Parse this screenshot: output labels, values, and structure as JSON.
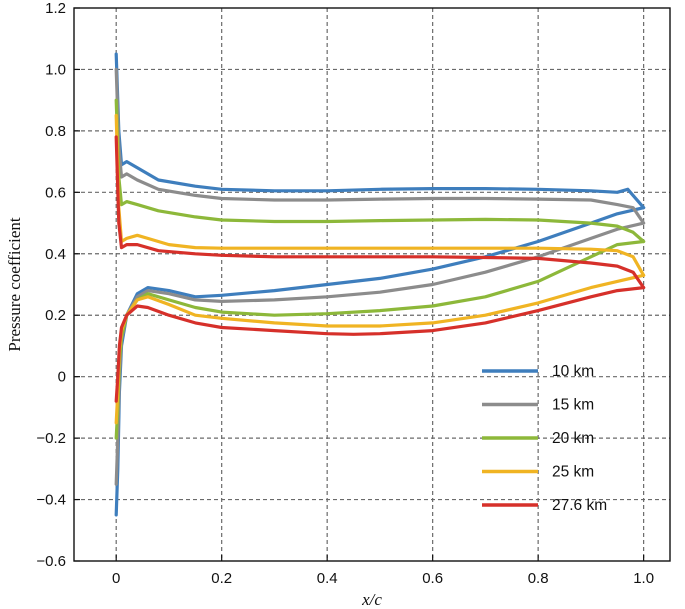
{
  "chart_data": {
    "type": "line",
    "xlabel": "x/c",
    "ylabel": "Pressure coefficient",
    "xlim": [
      -0.08,
      1.05
    ],
    "ylim": [
      -0.6,
      1.2
    ],
    "xticks": [
      0,
      0.2,
      0.4,
      0.6,
      0.8,
      1.0
    ],
    "xtick_labels": [
      "0",
      "0.2",
      "0.4",
      "0.6",
      "0.8",
      "1.0"
    ],
    "yticks": [
      -0.6,
      -0.4,
      -0.2,
      0,
      0.2,
      0.4,
      0.6,
      0.8,
      1.0,
      1.2
    ],
    "ytick_labels": [
      "−0.6",
      "−0.4",
      "−0.2",
      "0",
      "0.2",
      "0.4",
      "0.6",
      "0.8",
      "1.0",
      "1.2"
    ],
    "grid": true,
    "legend_position": "bottom-right",
    "series": [
      {
        "name": "10 km",
        "color": "#3e7ebd",
        "upper": [
          [
            0.0,
            1.05
          ],
          [
            0.005,
            0.8
          ],
          [
            0.01,
            0.69
          ],
          [
            0.02,
            0.7
          ],
          [
            0.04,
            0.68
          ],
          [
            0.08,
            0.64
          ],
          [
            0.15,
            0.62
          ],
          [
            0.2,
            0.61
          ],
          [
            0.3,
            0.605
          ],
          [
            0.4,
            0.605
          ],
          [
            0.5,
            0.61
          ],
          [
            0.6,
            0.612
          ],
          [
            0.7,
            0.612
          ],
          [
            0.8,
            0.61
          ],
          [
            0.9,
            0.605
          ],
          [
            0.95,
            0.6
          ],
          [
            0.97,
            0.61
          ],
          [
            0.99,
            0.57
          ],
          [
            1.0,
            0.55
          ]
        ],
        "lower": [
          [
            0.0,
            -0.45
          ],
          [
            0.003,
            -0.3
          ],
          [
            0.006,
            -0.05
          ],
          [
            0.01,
            0.1
          ],
          [
            0.02,
            0.2
          ],
          [
            0.04,
            0.27
          ],
          [
            0.06,
            0.29
          ],
          [
            0.1,
            0.28
          ],
          [
            0.15,
            0.26
          ],
          [
            0.2,
            0.265
          ],
          [
            0.3,
            0.28
          ],
          [
            0.4,
            0.3
          ],
          [
            0.5,
            0.32
          ],
          [
            0.6,
            0.35
          ],
          [
            0.7,
            0.39
          ],
          [
            0.8,
            0.44
          ],
          [
            0.9,
            0.5
          ],
          [
            0.95,
            0.53
          ],
          [
            1.0,
            0.55
          ]
        ]
      },
      {
        "name": "15 km",
        "color": "#8c8c8c",
        "upper": [
          [
            0.0,
            1.0
          ],
          [
            0.005,
            0.75
          ],
          [
            0.01,
            0.65
          ],
          [
            0.02,
            0.66
          ],
          [
            0.04,
            0.64
          ],
          [
            0.08,
            0.61
          ],
          [
            0.15,
            0.59
          ],
          [
            0.2,
            0.58
          ],
          [
            0.3,
            0.575
          ],
          [
            0.4,
            0.575
          ],
          [
            0.5,
            0.578
          ],
          [
            0.6,
            0.58
          ],
          [
            0.7,
            0.58
          ],
          [
            0.8,
            0.578
          ],
          [
            0.9,
            0.575
          ],
          [
            0.95,
            0.56
          ],
          [
            0.98,
            0.55
          ],
          [
            1.0,
            0.5
          ]
        ],
        "lower": [
          [
            0.0,
            -0.35
          ],
          [
            0.003,
            -0.2
          ],
          [
            0.006,
            0.0
          ],
          [
            0.01,
            0.12
          ],
          [
            0.02,
            0.2
          ],
          [
            0.04,
            0.26
          ],
          [
            0.06,
            0.28
          ],
          [
            0.1,
            0.27
          ],
          [
            0.15,
            0.25
          ],
          [
            0.2,
            0.245
          ],
          [
            0.3,
            0.25
          ],
          [
            0.4,
            0.26
          ],
          [
            0.5,
            0.275
          ],
          [
            0.6,
            0.3
          ],
          [
            0.7,
            0.34
          ],
          [
            0.8,
            0.39
          ],
          [
            0.9,
            0.45
          ],
          [
            0.95,
            0.48
          ],
          [
            1.0,
            0.5
          ]
        ]
      },
      {
        "name": "20 km",
        "color": "#8db83a",
        "upper": [
          [
            0.0,
            0.9
          ],
          [
            0.005,
            0.65
          ],
          [
            0.01,
            0.56
          ],
          [
            0.02,
            0.57
          ],
          [
            0.04,
            0.56
          ],
          [
            0.08,
            0.54
          ],
          [
            0.15,
            0.52
          ],
          [
            0.2,
            0.51
          ],
          [
            0.3,
            0.505
          ],
          [
            0.4,
            0.505
          ],
          [
            0.5,
            0.508
          ],
          [
            0.6,
            0.51
          ],
          [
            0.7,
            0.512
          ],
          [
            0.8,
            0.51
          ],
          [
            0.9,
            0.5
          ],
          [
            0.95,
            0.49
          ],
          [
            0.98,
            0.47
          ],
          [
            1.0,
            0.44
          ]
        ],
        "lower": [
          [
            0.0,
            -0.2
          ],
          [
            0.003,
            -0.1
          ],
          [
            0.006,
            0.05
          ],
          [
            0.01,
            0.13
          ],
          [
            0.02,
            0.2
          ],
          [
            0.04,
            0.25
          ],
          [
            0.06,
            0.27
          ],
          [
            0.1,
            0.25
          ],
          [
            0.15,
            0.225
          ],
          [
            0.2,
            0.21
          ],
          [
            0.3,
            0.2
          ],
          [
            0.4,
            0.205
          ],
          [
            0.5,
            0.215
          ],
          [
            0.6,
            0.23
          ],
          [
            0.7,
            0.26
          ],
          [
            0.8,
            0.31
          ],
          [
            0.9,
            0.39
          ],
          [
            0.95,
            0.43
          ],
          [
            1.0,
            0.44
          ]
        ]
      },
      {
        "name": "25 km",
        "color": "#f0b423",
        "upper": [
          [
            0.0,
            0.85
          ],
          [
            0.005,
            0.55
          ],
          [
            0.01,
            0.44
          ],
          [
            0.02,
            0.45
          ],
          [
            0.04,
            0.46
          ],
          [
            0.06,
            0.45
          ],
          [
            0.1,
            0.43
          ],
          [
            0.15,
            0.42
          ],
          [
            0.2,
            0.418
          ],
          [
            0.3,
            0.418
          ],
          [
            0.4,
            0.418
          ],
          [
            0.5,
            0.418
          ],
          [
            0.6,
            0.418
          ],
          [
            0.7,
            0.418
          ],
          [
            0.8,
            0.418
          ],
          [
            0.9,
            0.415
          ],
          [
            0.95,
            0.41
          ],
          [
            0.98,
            0.39
          ],
          [
            1.0,
            0.33
          ]
        ],
        "lower": [
          [
            0.0,
            -0.15
          ],
          [
            0.003,
            -0.05
          ],
          [
            0.006,
            0.08
          ],
          [
            0.01,
            0.15
          ],
          [
            0.02,
            0.2
          ],
          [
            0.04,
            0.25
          ],
          [
            0.06,
            0.26
          ],
          [
            0.1,
            0.235
          ],
          [
            0.15,
            0.2
          ],
          [
            0.2,
            0.19
          ],
          [
            0.3,
            0.175
          ],
          [
            0.4,
            0.165
          ],
          [
            0.5,
            0.165
          ],
          [
            0.6,
            0.175
          ],
          [
            0.7,
            0.2
          ],
          [
            0.8,
            0.24
          ],
          [
            0.9,
            0.29
          ],
          [
            0.95,
            0.31
          ],
          [
            1.0,
            0.33
          ]
        ]
      },
      {
        "name": "27.6 km",
        "color": "#d6302a",
        "upper": [
          [
            0.0,
            0.78
          ],
          [
            0.005,
            0.5
          ],
          [
            0.01,
            0.42
          ],
          [
            0.02,
            0.43
          ],
          [
            0.04,
            0.43
          ],
          [
            0.08,
            0.41
          ],
          [
            0.15,
            0.4
          ],
          [
            0.2,
            0.395
          ],
          [
            0.3,
            0.39
          ],
          [
            0.4,
            0.39
          ],
          [
            0.5,
            0.39
          ],
          [
            0.6,
            0.39
          ],
          [
            0.7,
            0.388
          ],
          [
            0.8,
            0.385
          ],
          [
            0.9,
            0.37
          ],
          [
            0.95,
            0.36
          ],
          [
            0.98,
            0.34
          ],
          [
            1.0,
            0.29
          ]
        ],
        "lower": [
          [
            0.0,
            -0.08
          ],
          [
            0.003,
            0.0
          ],
          [
            0.006,
            0.1
          ],
          [
            0.01,
            0.16
          ],
          [
            0.02,
            0.2
          ],
          [
            0.04,
            0.23
          ],
          [
            0.06,
            0.225
          ],
          [
            0.1,
            0.2
          ],
          [
            0.15,
            0.175
          ],
          [
            0.2,
            0.16
          ],
          [
            0.3,
            0.15
          ],
          [
            0.4,
            0.14
          ],
          [
            0.45,
            0.138
          ],
          [
            0.5,
            0.14
          ],
          [
            0.6,
            0.15
          ],
          [
            0.7,
            0.175
          ],
          [
            0.8,
            0.215
          ],
          [
            0.9,
            0.26
          ],
          [
            0.95,
            0.28
          ],
          [
            1.0,
            0.29
          ]
        ]
      }
    ]
  }
}
